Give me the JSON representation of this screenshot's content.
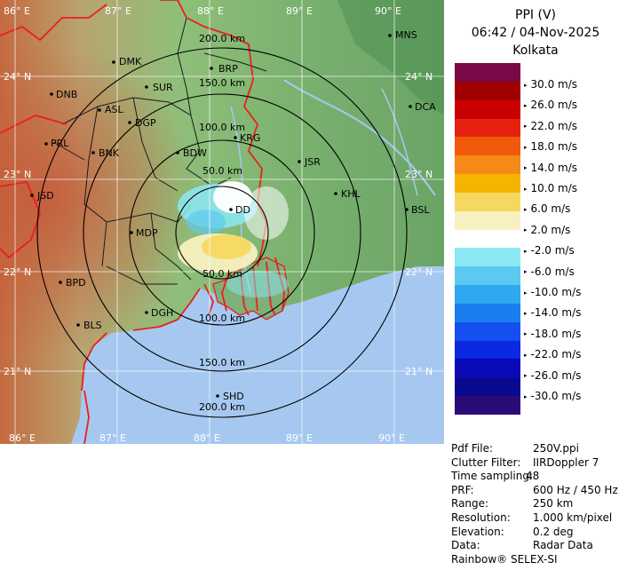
{
  "title": {
    "product": "PPI (V)",
    "datetime": "06:42 / 04-Nov-2025",
    "station": "Kolkata"
  },
  "colors": {
    "sea": "#a6c8f0",
    "border": "#e8201e"
  },
  "grid": {
    "lon_labels": [
      "86° E",
      "87° E",
      "88° E",
      "89° E",
      "90° E"
    ],
    "lat_labels": [
      "24° N",
      "23° N",
      "22° N",
      "21° N"
    ]
  },
  "rings": [
    "50.0 km",
    "100.0 km",
    "150.0 km",
    "200.0 km"
  ],
  "cities": [
    "MNS",
    "DMK",
    "BRP",
    "DNB",
    "SUR",
    "DCA",
    "ASL",
    "DGP",
    "KRG",
    "PRL",
    "BNK",
    "BDW",
    "JSR",
    "JSD",
    "KHL",
    "DD",
    "BSL",
    "MDP",
    "BPD",
    "DGH",
    "BLS",
    "SHD"
  ],
  "legend": {
    "labels": [
      "30.0 m/s",
      "26.0 m/s",
      "22.0 m/s",
      "18.0 m/s",
      "14.0 m/s",
      "10.0 m/s",
      "6.0 m/s",
      "2.0 m/s",
      "-2.0 m/s",
      "-6.0 m/s",
      "-10.0 m/s",
      "-14.0 m/s",
      "-18.0 m/s",
      "-22.0 m/s",
      "-26.0 m/s",
      "-30.0 m/s"
    ],
    "colors": [
      "#7a0a47",
      "#a00000",
      "#c80000",
      "#e82010",
      "#f05a0a",
      "#f58a18",
      "#f5b400",
      "#f5d860",
      "#f7f0c0",
      "#ffffff",
      "#8ce8f4",
      "#5ccaf0",
      "#2ea8f0",
      "#1a7ef0",
      "#1450f0",
      "#0c28e0",
      "#0a0ab8",
      "#0a0a90",
      "#2c0a78"
    ]
  },
  "info": [
    {
      "key": "Pdf File:",
      "value": "250V.ppi"
    },
    {
      "key": "Clutter Filter:",
      "value": "IIRDoppler 7"
    },
    {
      "key": "Time sampling:",
      "value": "48"
    },
    {
      "key": "PRF:",
      "value": "600 Hz / 450 Hz"
    },
    {
      "key": "Range:",
      "value": "250 km"
    },
    {
      "key": "Resolution:",
      "value": "1.000 km/pixel"
    },
    {
      "key": "Elevation:",
      "value": "0.2 deg"
    },
    {
      "key": "Data:",
      "value": "Radar Data"
    }
  ],
  "footer": "Rainbow® SELEX-SI"
}
